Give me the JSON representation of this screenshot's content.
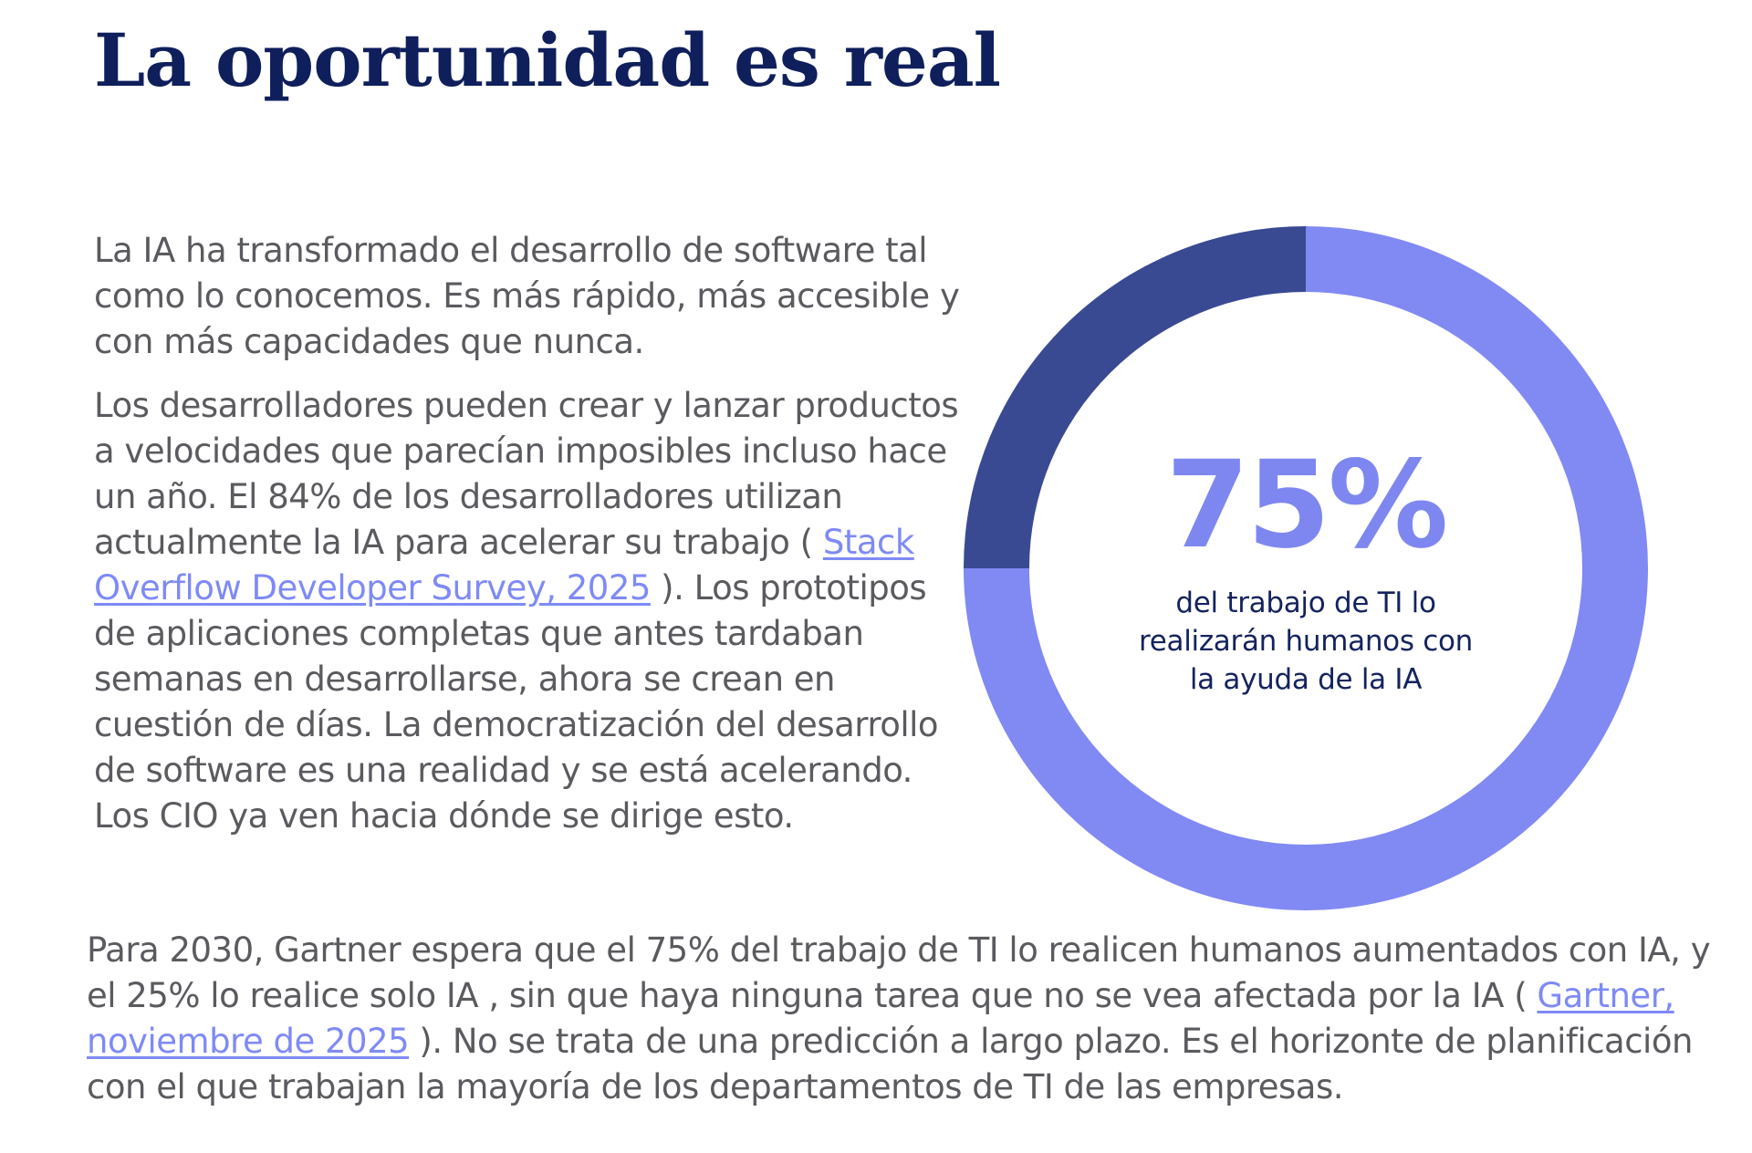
{
  "page": {
    "title": "La oportunidad es real"
  },
  "intro": {
    "paragraph1": "La IA ha transformado el desarrollo de software tal como lo conocemos. Es más rápido, más accesible y con más capacidades que nunca.",
    "paragraph2_before": "Los desarrolladores pueden crear y lanzar productos a velocidades que parecían imposibles incluso hace un año. El 84% de los desarrolladores utilizan actualmente la IA para acelerar su trabajo ( ",
    "paragraph2_link": "Stack Overflow Developer Survey, 2025",
    "paragraph2_after": " ). Los prototipos de aplicaciones completas que antes tardaban semanas en desarrollarse, ahora se crean en cuestión de días. La democratización del desarrollo de software es una realidad y se está acelerando. Los CIO ya ven hacia dónde se dirige esto."
  },
  "outro": {
    "before": "Para 2030, Gartner espera que el 75% del trabajo de TI lo realicen humanos aumentados con IA, y el 25% lo realice solo IA , sin que haya ninguna tarea que no se vea afectada por la IA ( ",
    "link": "Gartner, noviembre de 2025",
    "after": " ). No se trata de una predicción a largo plazo. Es el horizonte de planificación con el que trabajan la mayoría de los departamentos de TI de las empresas."
  },
  "donut": {
    "value_label": "75%",
    "caption": "del trabajo de TI lo realizarán humanos con la ayuda de la IA",
    "segments": [
      {
        "share": 0.75,
        "color": "#8189f3"
      },
      {
        "share": 0.25,
        "color": "#394a93"
      }
    ]
  },
  "colors": {
    "title": "#0f1f5c",
    "body_text": "#5a5a5f",
    "link": "#7e8af5",
    "accent_light": "#8189f3",
    "accent_dark": "#394a93"
  }
}
